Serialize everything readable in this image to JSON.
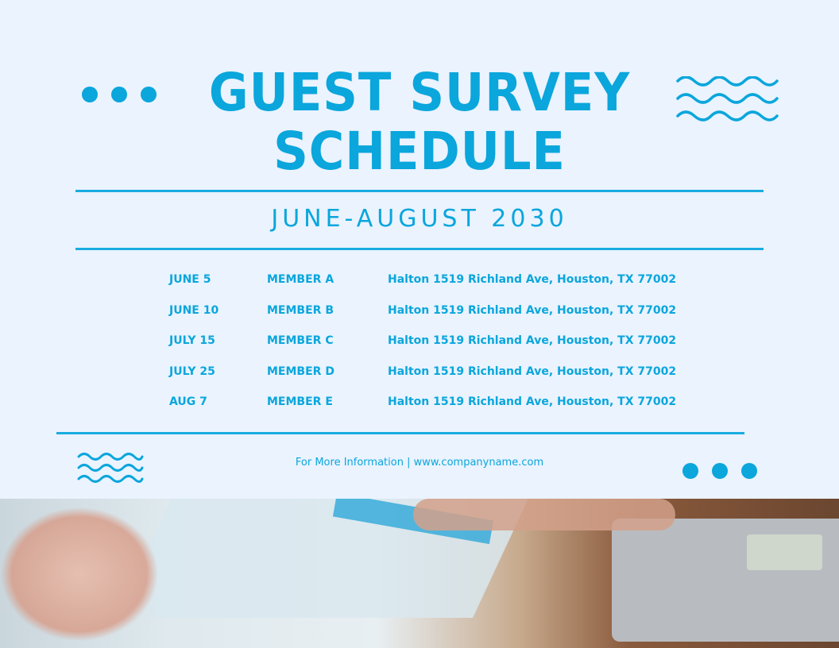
{
  "header": {
    "title_line1": "GUEST SURVEY",
    "title_line2": "SCHEDULE",
    "subtitle": "JUNE-AUGUST 2030"
  },
  "schedule": [
    {
      "date": "JUNE 5",
      "member": "MEMBER A",
      "location": "Halton 1519 Richland Ave, Houston, TX 77002"
    },
    {
      "date": "JUNE 10",
      "member": "MEMBER B",
      "location": "Halton 1519 Richland Ave, Houston, TX 77002"
    },
    {
      "date": "JULY 15",
      "member": "MEMBER C",
      "location": "Halton 1519 Richland Ave, Houston, TX 77002"
    },
    {
      "date": "JULY 25",
      "member": "MEMBER D",
      "location": "Halton 1519 Richland Ave, Houston, TX 77002"
    },
    {
      "date": "AUG 7",
      "member": "MEMBER E",
      "location": "Halton 1519 Richland Ave, Houston, TX 77002"
    }
  ],
  "footer": {
    "text": "For More Information | www.companyname.com"
  },
  "colors": {
    "accent": "#0aa6dc",
    "background": "#eaf3fe"
  },
  "icons": [
    "dots-icon",
    "waves-icon"
  ]
}
